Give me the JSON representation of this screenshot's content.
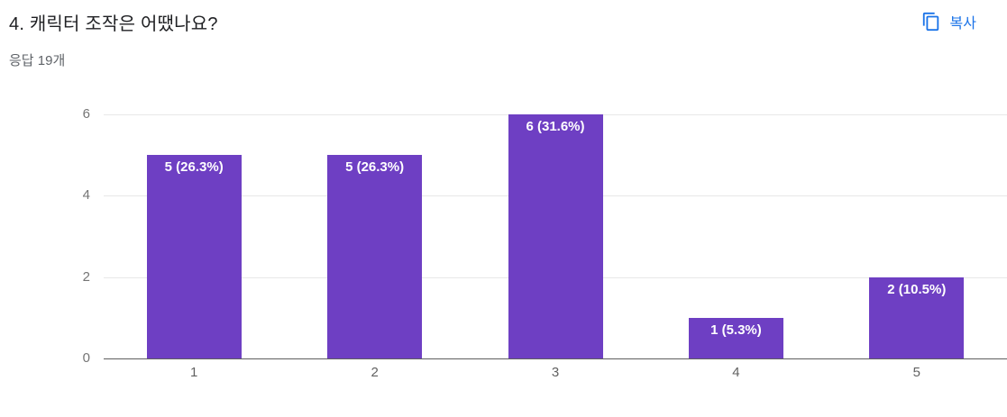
{
  "header": {
    "title": "4. 캐릭터 조작은 어땠나요?",
    "copy_label": "복사",
    "response_count": "응답 19개"
  },
  "colors": {
    "bar": "#6e3fc3",
    "accent_blue": "#1a73e8"
  },
  "chart_data": {
    "type": "bar",
    "title": "4. 캐릭터 조작은 어땠나요?",
    "subtitle": "응답 19개",
    "categories": [
      "1",
      "2",
      "3",
      "4",
      "5"
    ],
    "values": [
      5,
      5,
      6,
      1,
      2
    ],
    "data_labels": [
      "5 (26.3%)",
      "5 (26.3%)",
      "6 (31.6%)",
      "1 (5.3%)",
      "2 (10.5%)"
    ],
    "xlabel": "",
    "ylabel": "",
    "ylim": [
      0,
      6
    ],
    "yticks": [
      0,
      2,
      4,
      6
    ],
    "grid": true,
    "legend": "none",
    "bar_color": "#6e3fc3"
  }
}
